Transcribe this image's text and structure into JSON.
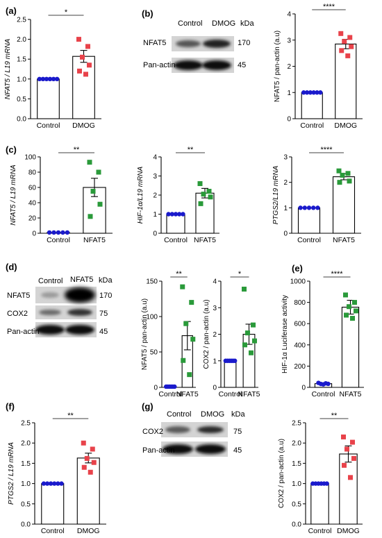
{
  "panels": [
    {
      "id": "a",
      "letter": "(a)"
    },
    {
      "id": "b",
      "letter": "(b)"
    },
    {
      "id": "c",
      "letter": "(c)"
    },
    {
      "id": "d",
      "letter": "(d)"
    },
    {
      "id": "e",
      "letter": "(e)"
    },
    {
      "id": "f",
      "letter": "(f)"
    },
    {
      "id": "g",
      "letter": "(g)"
    }
  ],
  "blots": {
    "b": {
      "lanes": [
        "Control",
        "DMOG"
      ],
      "unit": "kDa",
      "rows": [
        {
          "label": "NFAT5",
          "kda": "170"
        },
        {
          "label": "Pan-actin",
          "kda": "45"
        }
      ]
    },
    "d": {
      "lanes": [
        "Control",
        "NFAT5"
      ],
      "unit": "kDa",
      "rows": [
        {
          "label": "NFAT5",
          "kda": "170"
        },
        {
          "label": "COX2",
          "kda": "75"
        },
        {
          "label": "Pan-actin",
          "kda": "45"
        }
      ]
    },
    "g": {
      "lanes": [
        "Control",
        "DMOG"
      ],
      "unit": "kDa",
      "rows": [
        {
          "label": "COX2",
          "kda": "75"
        },
        {
          "label": "Pan-actin",
          "kda": "45"
        }
      ]
    }
  },
  "colors": {
    "control": "#1a1acc",
    "dmog": "#e8424a",
    "nfat5": "#2a9a3a"
  },
  "chart_data": [
    {
      "id": "a",
      "type": "bar",
      "ylabel": "NFAT5 / L19 mRNA",
      "italic_ylabel": true,
      "categories": [
        "Control",
        "DMOG"
      ],
      "ylim": [
        0,
        2.5
      ],
      "yticks": [
        "0.0",
        "0.5",
        "1.0",
        "1.5",
        "2.0",
        "2.5"
      ],
      "values": [
        1.0,
        1.57
      ],
      "errors": [
        0,
        0.15
      ],
      "sig": "*",
      "points": [
        [
          1,
          1,
          1,
          1,
          1,
          1
        ],
        [
          2.0,
          1.82,
          1.55,
          1.35,
          1.2,
          1.12
        ]
      ],
      "point_colors": [
        "control",
        "dmog"
      ],
      "marker": "square"
    },
    {
      "id": "b",
      "type": "bar",
      "ylabel": "NFAT5 / pan-actin (a.u)",
      "italic_ylabel": false,
      "categories": [
        "Control",
        "DMOG"
      ],
      "ylim": [
        0,
        4
      ],
      "yticks": [
        "0",
        "1",
        "2",
        "3",
        "4"
      ],
      "values": [
        1.0,
        2.85
      ],
      "errors": [
        0,
        0.18
      ],
      "sig": "****",
      "points": [
        [
          1,
          1,
          1,
          1,
          1,
          1
        ],
        [
          3.25,
          3.1,
          2.95,
          2.75,
          2.6,
          2.4
        ]
      ],
      "point_colors": [
        "control",
        "dmog"
      ],
      "marker": "square"
    },
    {
      "id": "c1",
      "type": "bar",
      "ylabel": "NFAT5 / L19 mRNA",
      "italic_ylabel": true,
      "categories": [
        "Control",
        "NFAT5"
      ],
      "ylim": [
        0,
        100
      ],
      "yticks": [
        "0",
        "20",
        "40",
        "60",
        "80",
        "100"
      ],
      "values": [
        1,
        60
      ],
      "errors": [
        0,
        12
      ],
      "sig": "**",
      "points": [
        [
          1,
          1,
          1,
          1,
          1
        ],
        [
          93,
          80,
          55,
          38,
          22
        ]
      ],
      "point_colors": [
        "control",
        "nfat5"
      ],
      "marker": "square"
    },
    {
      "id": "c2",
      "type": "bar",
      "ylabel": "HIF-1α/L19 mRNA",
      "italic_ylabel": true,
      "categories": [
        "Control",
        "NFAT5"
      ],
      "ylim": [
        0,
        4
      ],
      "yticks": [
        "0",
        "1",
        "2",
        "3",
        "4"
      ],
      "values": [
        1.0,
        2.1
      ],
      "errors": [
        0,
        0.25
      ],
      "sig": "**",
      "points": [
        [
          1,
          1,
          1,
          1,
          1
        ],
        [
          2.6,
          2.2,
          2.05,
          1.9,
          1.55
        ]
      ],
      "point_colors": [
        "control",
        "nfat5"
      ],
      "marker": "square"
    },
    {
      "id": "c3",
      "type": "bar",
      "ylabel": "PTGS2/L19 mRNA",
      "italic_ylabel": true,
      "categories": [
        "Control",
        "NFAT5"
      ],
      "ylim": [
        0,
        3
      ],
      "yticks": [
        "0",
        "1",
        "2",
        "3"
      ],
      "values": [
        1.0,
        2.22
      ],
      "errors": [
        0,
        0.12
      ],
      "sig": "****",
      "points": [
        [
          1,
          1,
          1,
          1,
          1
        ],
        [
          2.45,
          2.35,
          2.28,
          2.05,
          2.0
        ]
      ],
      "point_colors": [
        "control",
        "nfat5"
      ],
      "marker": "square"
    },
    {
      "id": "d1",
      "type": "bar",
      "ylabel": "NFAT5 / pan-actin (a.u)",
      "italic_ylabel": false,
      "categories": [
        "Control",
        "NFAT5"
      ],
      "ylim": [
        0,
        150
      ],
      "yticks": [
        "0",
        "50",
        "100",
        "150"
      ],
      "values": [
        1,
        73
      ],
      "errors": [
        0,
        20
      ],
      "sig": "**",
      "points": [
        [
          1,
          1,
          1,
          1,
          1,
          1
        ],
        [
          142,
          120,
          90,
          68,
          38,
          18
        ]
      ],
      "point_colors": [
        "control",
        "nfat5"
      ],
      "marker": "square"
    },
    {
      "id": "d2",
      "type": "bar",
      "ylabel": "COX2 / pan-actin (a.u)",
      "italic_ylabel": false,
      "categories": [
        "Control",
        "NFAT5"
      ],
      "ylim": [
        0,
        4
      ],
      "yticks": [
        "0",
        "1",
        "2",
        "3",
        "4"
      ],
      "values": [
        1.0,
        2.0
      ],
      "errors": [
        0,
        0.38
      ],
      "sig": "*",
      "points": [
        [
          1,
          1,
          1,
          1,
          1,
          1
        ],
        [
          3.7,
          2.35,
          2.05,
          1.75,
          1.6,
          1.3
        ]
      ],
      "point_colors": [
        "control",
        "nfat5"
      ],
      "marker": "square"
    },
    {
      "id": "e",
      "type": "bar",
      "ylabel": "HIF-1α Luciferase activity",
      "italic_ylabel": false,
      "categories": [
        "Control",
        "NFAT5"
      ],
      "ylim": [
        0,
        1000
      ],
      "yticks": [
        "0",
        "200",
        "400",
        "600",
        "800",
        "1000"
      ],
      "values": [
        35,
        755
      ],
      "errors": [
        6,
        65
      ],
      "sig": "****",
      "points": [
        [
          42,
          32,
          28,
          38,
          33
        ],
        [
          870,
          800,
          760,
          720,
          680,
          650
        ]
      ],
      "point_colors": [
        "control",
        "nfat5"
      ],
      "marker": "circle_square"
    },
    {
      "id": "f",
      "type": "bar",
      "ylabel": "PTGS2 / L19 mRNA",
      "italic_ylabel": true,
      "categories": [
        "Control",
        "DMOG"
      ],
      "ylim": [
        0,
        2.5
      ],
      "yticks": [
        "0.0",
        "0.5",
        "1.0",
        "1.5",
        "2.0",
        "2.5"
      ],
      "values": [
        1.0,
        1.63
      ],
      "errors": [
        0,
        0.12
      ],
      "sig": "**",
      "points": [
        [
          1,
          1,
          1,
          1,
          1,
          1
        ],
        [
          2.0,
          1.85,
          1.62,
          1.52,
          1.4,
          1.28
        ]
      ],
      "point_colors": [
        "control",
        "dmog"
      ],
      "marker": "square"
    },
    {
      "id": "g",
      "type": "bar",
      "ylabel": "COX2 / pan-actin (a.u)",
      "italic_ylabel": false,
      "categories": [
        "Control",
        "DMOG"
      ],
      "ylim": [
        0,
        2.5
      ],
      "yticks": [
        "0.0",
        "0.5",
        "1.0",
        "1.5",
        "2.0",
        "2.5"
      ],
      "values": [
        1.0,
        1.73
      ],
      "errors": [
        0,
        0.2
      ],
      "sig": "**",
      "points": [
        [
          1,
          1,
          1,
          1,
          1,
          1
        ],
        [
          2.15,
          2.02,
          1.85,
          1.62,
          1.45,
          1.15
        ]
      ],
      "point_colors": [
        "control",
        "dmog"
      ],
      "marker": "square"
    }
  ]
}
